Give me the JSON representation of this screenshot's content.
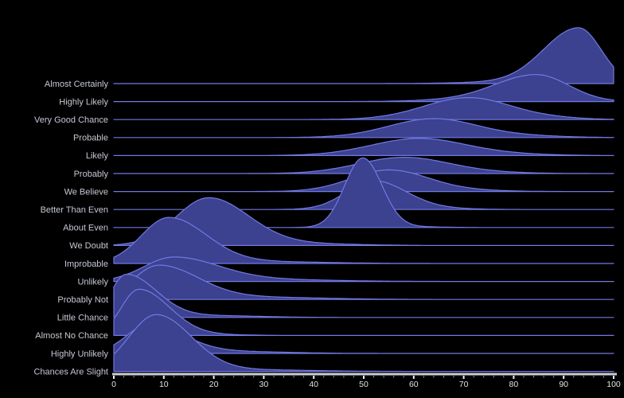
{
  "chart_data": {
    "type": "area",
    "subtype": "ridgeline-density",
    "title": "",
    "xlabel": "",
    "ylabel": "",
    "x_axis": {
      "min": 0,
      "max": 100,
      "tick_step": 10,
      "minor_tick_step": 2,
      "tick_labels": [
        "0",
        "10",
        "20",
        "30",
        "40",
        "50",
        "60",
        "70",
        "80",
        "90",
        "100"
      ]
    },
    "legend": "none",
    "grid": "off",
    "categories": [
      "Almost Certainly",
      "Highly Likely",
      "Very Good Chance",
      "Probable",
      "Likely",
      "Probably",
      "We Believe",
      "Better Than Even",
      "About Even",
      "We Doubt",
      "Improbable",
      "Unlikely",
      "Probably Not",
      "Little Chance",
      "Almost No Chance",
      "Highly Unlikely",
      "Chances Are Slight"
    ],
    "series": [
      {
        "label": "Almost Certainly",
        "mode": 93,
        "peak_height": 3.1,
        "sl": 7,
        "sr": 4.5,
        "tail": {
          "mu": 75,
          "amp": 0.06,
          "sl": 8,
          "sr": 8
        }
      },
      {
        "label": "Highly Likely",
        "mode": 84.5,
        "peak_height": 1.5,
        "sl": 8.5,
        "sr": 6.5,
        "tail": {
          "mu": 65,
          "amp": 0.05,
          "sl": 7,
          "sr": 7
        }
      },
      {
        "label": "Very Good Chance",
        "mode": 71,
        "peak_height": 1.22,
        "sl": 9,
        "sr": 8.5,
        "tail": {
          "mu": 88,
          "amp": 0.07,
          "sl": 6,
          "sr": 6
        }
      },
      {
        "label": "Probable",
        "mode": 64,
        "peak_height": 1.05,
        "sl": 9,
        "sr": 9,
        "tail": {
          "mu": 84,
          "amp": 0.07,
          "sl": 7,
          "sr": 7
        }
      },
      {
        "label": "Likely",
        "mode": 61,
        "peak_height": 0.95,
        "sl": 9.5,
        "sr": 9.5,
        "tail": {
          "mu": 80,
          "amp": 0.06,
          "sl": 8,
          "sr": 8
        }
      },
      {
        "label": "Probably",
        "mode": 58,
        "peak_height": 0.9,
        "sl": 9,
        "sr": 9,
        "tail": {
          "mu": 75,
          "amp": 0.05,
          "sl": 8,
          "sr": 8
        }
      },
      {
        "label": "We Believe",
        "mode": 55,
        "peak_height": 1.2,
        "sl": 7.5,
        "sr": 8,
        "tail": {
          "mu": 72,
          "amp": 0.05,
          "sl": 7,
          "sr": 7
        }
      },
      {
        "label": "Better Than Even",
        "mode": 52,
        "peak_height": 1.6,
        "sl": 5.5,
        "sr": 6.5,
        "tail": {
          "mu": 66,
          "amp": 0.05,
          "sl": 6,
          "sr": 6
        }
      },
      {
        "label": "About Even",
        "mode": 49.8,
        "peak_height": 3.85,
        "sl": 3.6,
        "sr": 3.8,
        "tail": {
          "mu": 58,
          "amp": 0.05,
          "sl": 6,
          "sr": 6
        }
      },
      {
        "label": "We Doubt",
        "mode": 19,
        "peak_height": 2.65,
        "sl": 6.5,
        "sr": 8,
        "tail": {
          "mu": 38,
          "amp": 0.1,
          "sl": 8,
          "sr": 10
        }
      },
      {
        "label": "Improbable",
        "mode": 11,
        "peak_height": 2.55,
        "sl": 5.5,
        "sr": 7.5,
        "tail": {
          "mu": 30,
          "amp": 0.1,
          "sl": 9,
          "sr": 12
        }
      },
      {
        "label": "Unlikely",
        "mode": 12,
        "peak_height": 1.35,
        "sl": 6,
        "sr": 9,
        "tail": {
          "mu": 32,
          "amp": 0.1,
          "sl": 9,
          "sr": 12
        }
      },
      {
        "label": "Probably Not",
        "mode": 9,
        "peak_height": 1.9,
        "sl": 5,
        "sr": 8,
        "tail": {
          "mu": 30,
          "amp": 0.12,
          "sl": 9,
          "sr": 12
        }
      },
      {
        "label": "Little Chance",
        "mode": 2.5,
        "peak_height": 2.4,
        "sl": 3,
        "sr": 6,
        "tail": {
          "mu": 20,
          "amp": 0.1,
          "sl": 7,
          "sr": 9
        }
      },
      {
        "label": "Almost No Chance",
        "mode": 5,
        "peak_height": 2.55,
        "sl": 3.5,
        "sr": 6,
        "tail": {
          "mu": 15,
          "amp": 0.07,
          "sl": 6,
          "sr": 8
        }
      },
      {
        "label": "Highly Unlikely",
        "mode": 7,
        "peak_height": 1.6,
        "sl": 4.5,
        "sr": 7,
        "tail": {
          "mu": 25,
          "amp": 0.1,
          "sl": 8,
          "sr": 10
        }
      },
      {
        "label": "Chances Are Slight",
        "mode": 8.5,
        "peak_height": 3.15,
        "sl": 5.5,
        "sr": 7,
        "tail": {
          "mu": 28,
          "amp": 0.09,
          "sl": 9,
          "sr": 11
        }
      }
    ],
    "notes": "peak_height is in row-spacing units; densities overlap rows above; curves clipped to x-range 0-100"
  },
  "colors": {
    "background": "#000000",
    "ridge_fill": "#3c4190",
    "ridge_stroke": "#7279e2",
    "axis_bar": "#c9cdd2",
    "major_tick": "#eef0f2",
    "minor_tick": "#8b919c",
    "category_label": "#c4c9d3",
    "tick_label": "#dfe1e6"
  }
}
